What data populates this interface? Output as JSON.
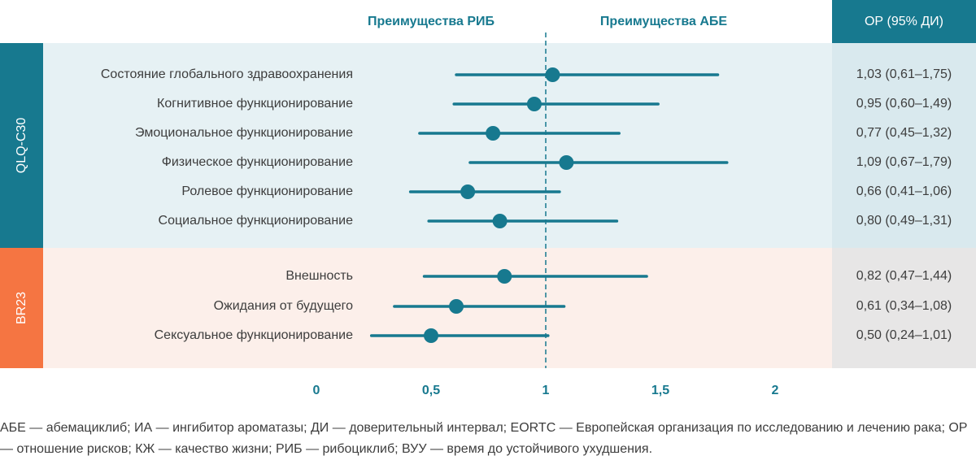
{
  "header": {
    "left_label": "Преимущества РИБ",
    "right_label": "Преимущества АБЕ",
    "or_label": "ОР (95% ДИ)"
  },
  "groups": [
    {
      "label": "QLQ-C30",
      "color": "#17798f"
    },
    {
      "label": "BR23",
      "color": "#f57542"
    }
  ],
  "chart_data": {
    "type": "forest",
    "xlim": [
      0,
      2
    ],
    "reference_line": 1,
    "ticks": [
      {
        "value": 0,
        "label": "0"
      },
      {
        "value": 0.5,
        "label": "0,5"
      },
      {
        "value": 1,
        "label": "1"
      },
      {
        "value": 1.5,
        "label": "1,5"
      },
      {
        "value": 2,
        "label": "2"
      }
    ],
    "rows": [
      {
        "group": "QLQ-C30",
        "label": "Состояние глобального здравоохранения",
        "hr": 1.03,
        "lo": 0.61,
        "hi": 1.75,
        "text": "1,03 (0,61–1,75)"
      },
      {
        "group": "QLQ-C30",
        "label": "Когнитивное функционирование",
        "hr": 0.95,
        "lo": 0.6,
        "hi": 1.49,
        "text": "0,95 (0,60–1,49)"
      },
      {
        "group": "QLQ-C30",
        "label": "Эмоциональное функционирование",
        "hr": 0.77,
        "lo": 0.45,
        "hi": 1.32,
        "text": "0,77 (0,45–1,32)"
      },
      {
        "group": "QLQ-C30",
        "label": "Физическое функционирование",
        "hr": 1.09,
        "lo": 0.67,
        "hi": 1.79,
        "text": "1,09 (0,67–1,79)"
      },
      {
        "group": "QLQ-C30",
        "label": "Ролевое функционирование",
        "hr": 0.66,
        "lo": 0.41,
        "hi": 1.06,
        "text": "0,66 (0,41–1,06)"
      },
      {
        "group": "QLQ-C30",
        "label": "Социальное функционирование",
        "hr": 0.8,
        "lo": 0.49,
        "hi": 1.31,
        "text": "0,80 (0,49–1,31)"
      },
      {
        "group": "BR23",
        "label": "Внешность",
        "hr": 0.82,
        "lo": 0.47,
        "hi": 1.44,
        "text": "0,82 (0,47–1,44)"
      },
      {
        "group": "BR23",
        "label": "Ожидания от будущего",
        "hr": 0.61,
        "lo": 0.34,
        "hi": 1.08,
        "text": "0,61 (0,34–1,08)"
      },
      {
        "group": "BR23",
        "label": "Сексуальное функционирование",
        "hr": 0.5,
        "lo": 0.24,
        "hi": 1.01,
        "text": "0,50 (0,24–1,01)"
      }
    ]
  },
  "footnote": "АБЕ — абемациклиб; ИА — ингибитор ароматазы; ДИ — доверительный интервал; EORTC — Европейская организация по исследованию и лечению рака; ОР — отношение рисков; КЖ — качество жизни; РИБ — рибоциклиб; ВУУ — время до устойчивого ухудшения.",
  "colors": {
    "teal": "#17798f",
    "orange": "#f57542"
  }
}
